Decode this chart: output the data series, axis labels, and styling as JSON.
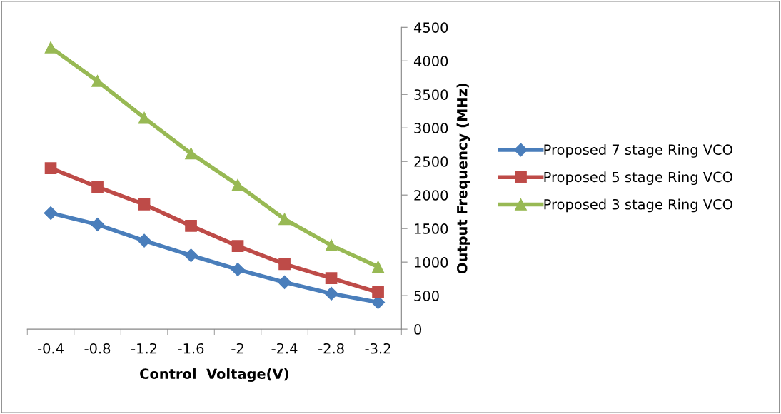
{
  "chart_data": {
    "type": "line",
    "xlabel": "Control  Voltage(V)",
    "ylabel": "Output Frequency (MHz)",
    "categories": [
      "-0.4",
      "-0.8",
      "-1.2",
      "-1.6",
      "-2",
      "-2.4",
      "-2.8",
      "-3.2"
    ],
    "series": [
      {
        "name": "Proposed 7 stage Ring VCO",
        "color": "#4a7ebb",
        "marker": "diamond",
        "values": [
          1730,
          1560,
          1320,
          1100,
          890,
          700,
          530,
          400
        ]
      },
      {
        "name": "Proposed 5 stage Ring VCO",
        "color": "#be4b48",
        "marker": "square",
        "values": [
          2400,
          2120,
          1860,
          1540,
          1240,
          970,
          760,
          550
        ]
      },
      {
        "name": "Proposed 3 stage Ring VCO",
        "color": "#98b954",
        "marker": "triangle",
        "values": [
          4200,
          3700,
          3150,
          2620,
          2150,
          1640,
          1250,
          930
        ]
      }
    ],
    "ylim": [
      0,
      4500
    ],
    "yticks": [
      0,
      500,
      1000,
      1500,
      2000,
      2500,
      3000,
      3500,
      4000,
      4500
    ],
    "grid": false,
    "legend": "right",
    "line_style": "solid"
  }
}
